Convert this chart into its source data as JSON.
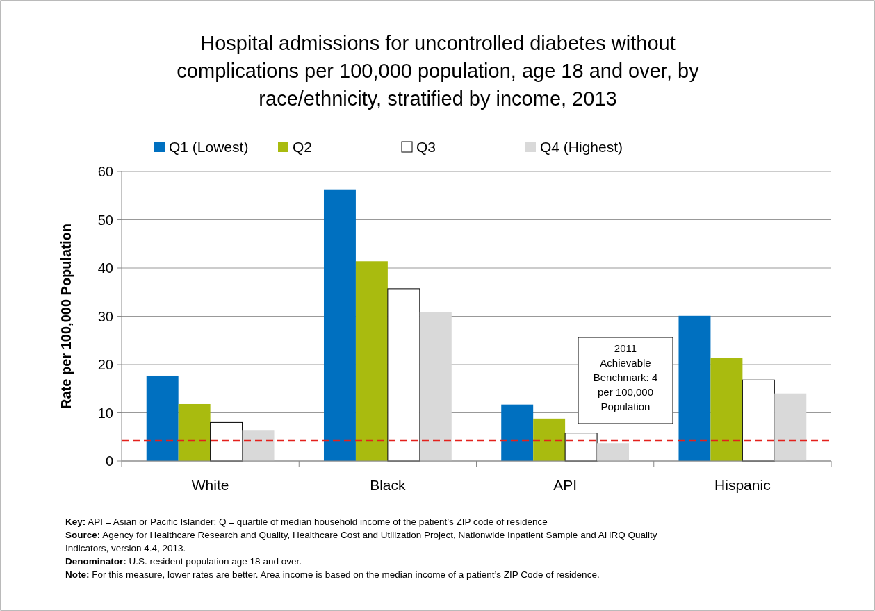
{
  "chart_data": {
    "type": "bar",
    "title": "Hospital admissions for uncontrolled diabetes without complications per 100,000 population, age 18 and over, by race/ethnicity, stratified by income, 2013",
    "ylabel": "Rate per 100,000 Population",
    "categories": [
      "White",
      "Black",
      "API",
      "Hispanic"
    ],
    "series": [
      {
        "name": "Q1 (Lowest)",
        "color": "#0070c0",
        "values": [
          17.7,
          56.3,
          11.7,
          30.1
        ]
      },
      {
        "name": "Q2",
        "color": "#a9bb0f",
        "values": [
          11.8,
          41.4,
          8.8,
          21.3
        ]
      },
      {
        "name": "Q3",
        "color": "#ffffff",
        "values": [
          8.0,
          35.7,
          5.8,
          16.8
        ]
      },
      {
        "name": "Q4 (Highest)",
        "color": "#d9d9d9",
        "values": [
          6.3,
          30.8,
          3.7,
          14.0
        ]
      }
    ],
    "ylim": [
      0,
      60
    ],
    "yticks": [
      0,
      10,
      20,
      30,
      40,
      50,
      60
    ],
    "grid": "y",
    "legend": "top",
    "ref_lines": [
      {
        "axis": "y",
        "value": 4.3,
        "label": "2011 Achievable Benchmark: 4 per 100,000 Population",
        "color": "#e3211c",
        "line_style": "dashed"
      }
    ],
    "annotations": [
      "Key: API = Asian or Pacific Islander; Q = quartile of median household income of the patient’s ZIP code of residence",
      "Source: Agency for Healthcare Research and Quality, Healthcare Cost and Utilization Project, Nationwide Inpatient Sample and AHRQ Quality Indicators, version 4.4, 2013.",
      "Denominator: U.S. resident population age 18 and over.",
      "Note: For this measure, lower rates are better. Area income is based on the median income of a patient’s ZIP Code of residence."
    ]
  }
}
